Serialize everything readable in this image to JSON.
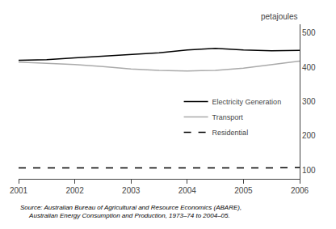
{
  "chart_data": {
    "type": "line",
    "ylabel": "petajoules",
    "annotations": [
      "Source: Australian Bureau of Agricultural and Resource Economics (ABARE),",
      "     Australian Energy Consumption and Production, 1973–74 to 2004–05."
    ],
    "x": [
      2001,
      2001.5,
      2002,
      2002.5,
      2003,
      2003.5,
      2004,
      2004.25,
      2004.5,
      2005,
      2005.5,
      2006
    ],
    "series": [
      {
        "name": "Electricity Generation",
        "color": "#000000",
        "line_style": "solid",
        "values": [
          420,
          422,
          427,
          432,
          436,
          442,
          450,
          453,
          455,
          450,
          448,
          449
        ]
      },
      {
        "name": "Transport",
        "color": "#aaaaaa",
        "line_style": "solid",
        "values": [
          415,
          412,
          408,
          402,
          395,
          391,
          389,
          390,
          391,
          397,
          407,
          418
        ]
      },
      {
        "name": "Residential",
        "color": "#000000",
        "line_style": "dashed",
        "values": [
          107,
          107,
          106,
          106,
          106,
          107,
          107,
          107,
          107,
          107,
          107,
          108
        ]
      }
    ],
    "xlim": [
      2001,
      2006
    ],
    "xticks": [
      2001,
      2002,
      2003,
      2004,
      2005,
      2006
    ],
    "ylim": [
      75,
      525
    ],
    "yticks": [
      100,
      200,
      300,
      400,
      500
    ],
    "grid": false,
    "legend": "right"
  }
}
